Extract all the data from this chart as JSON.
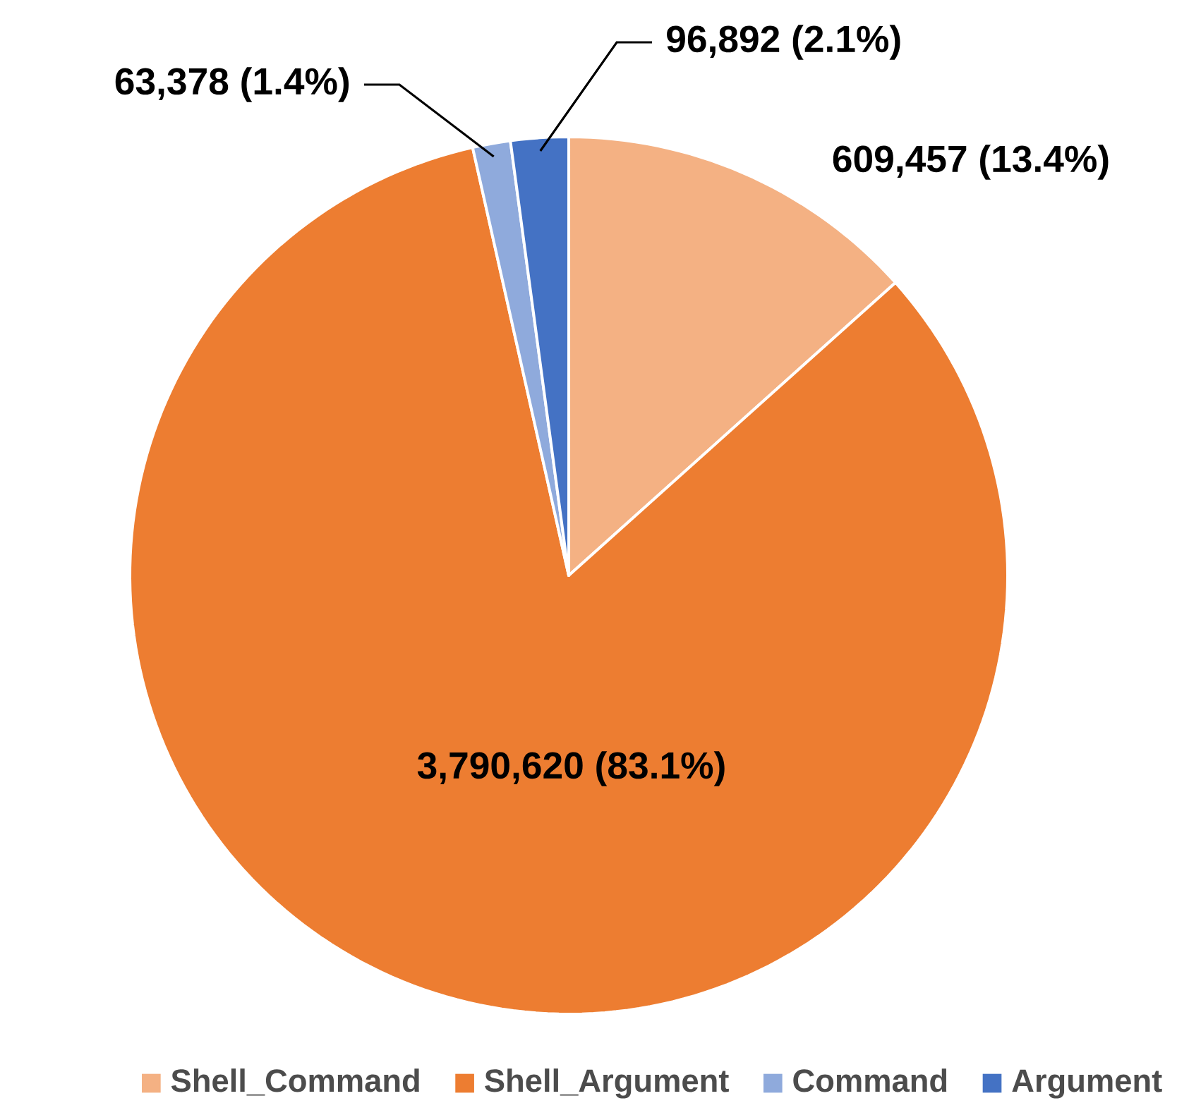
{
  "chart_data": {
    "type": "pie",
    "categories": [
      "Shell_Command",
      "Shell_Argument",
      "Command",
      "Argument"
    ],
    "values": [
      609457,
      3790620,
      63378,
      96892
    ],
    "colors": [
      "#f4b183",
      "#ed7d31",
      "#8faadc",
      "#4472c4"
    ],
    "value_labels": [
      "609,457 (13.4%)",
      "3,790,620 (83.1%)",
      "63,378 (1.4%)",
      "96,892 (2.1%)"
    ],
    "legend": "bottom"
  }
}
